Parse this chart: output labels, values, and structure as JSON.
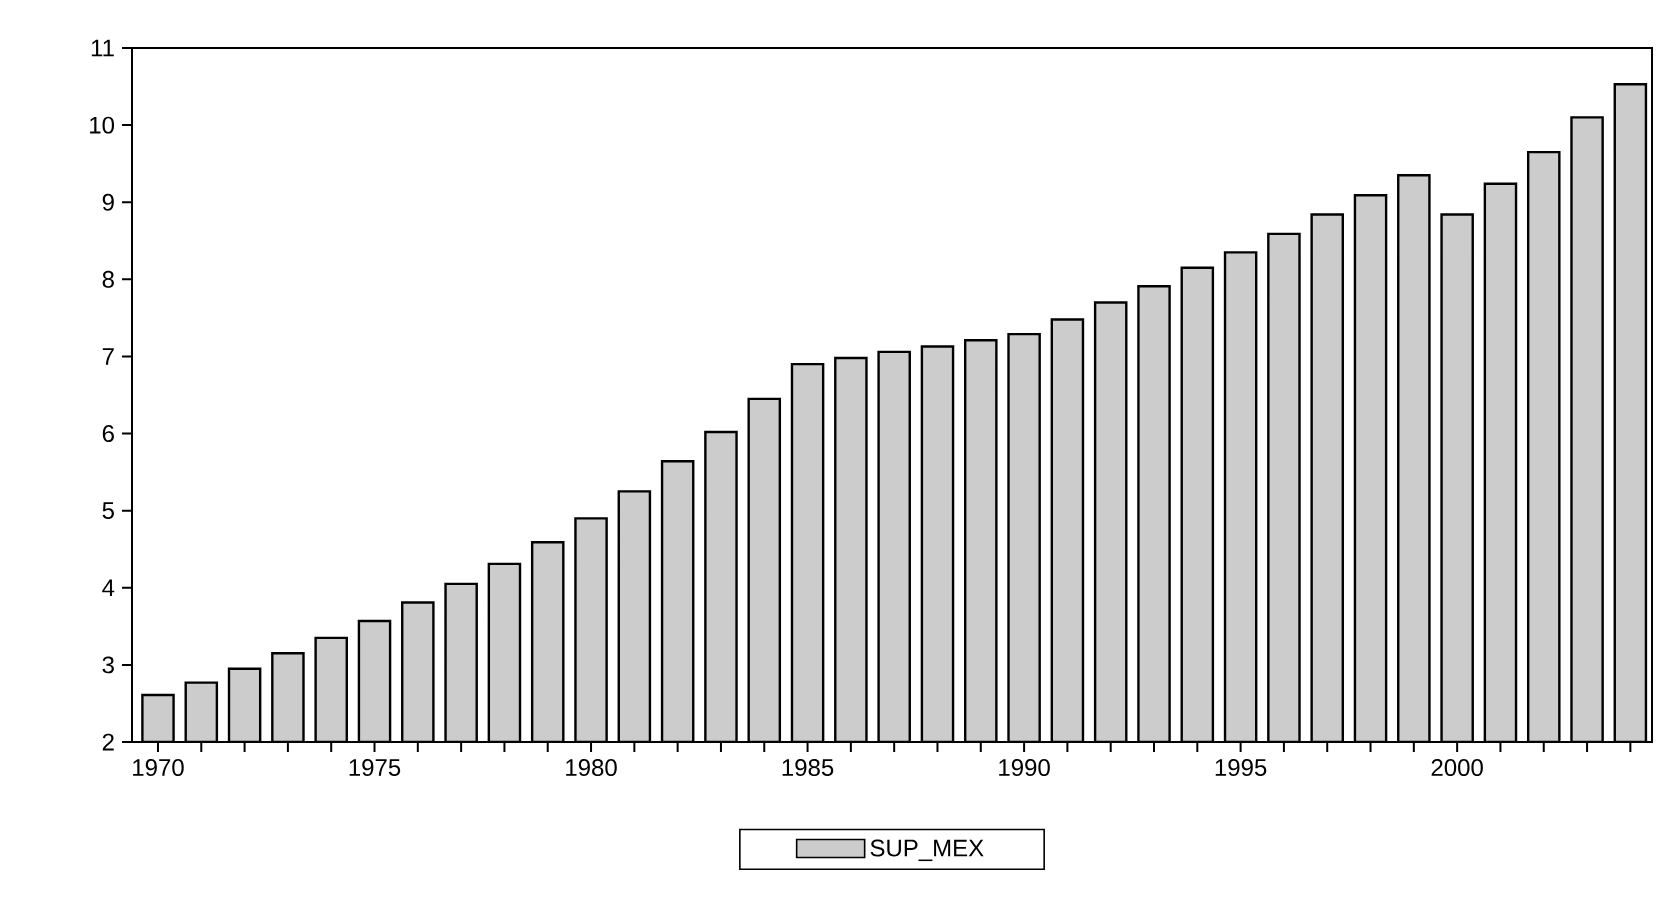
{
  "chart_data": {
    "type": "bar",
    "x": [
      1970,
      1971,
      1972,
      1973,
      1974,
      1975,
      1976,
      1977,
      1978,
      1979,
      1980,
      1981,
      1982,
      1983,
      1984,
      1985,
      1986,
      1987,
      1988,
      1989,
      1990,
      1991,
      1992,
      1993,
      1994,
      1995,
      1996,
      1997,
      1998,
      1999,
      2000,
      2001,
      2002,
      2003,
      2004
    ],
    "series": [
      {
        "name": "SUP_MEX",
        "color": "#cccccc",
        "values": [
          2.61,
          2.77,
          2.95,
          3.15,
          3.35,
          3.57,
          3.81,
          4.05,
          4.31,
          4.59,
          4.9,
          5.25,
          5.64,
          6.02,
          6.45,
          6.9,
          6.98,
          7.06,
          7.13,
          7.21,
          7.29,
          7.48,
          7.7,
          7.91,
          8.15,
          8.35,
          8.59,
          8.84,
          9.09,
          9.35,
          8.84,
          9.24,
          9.65,
          10.1,
          10.53
        ]
      }
    ],
    "xlim": [
      1969.4,
      2004.5
    ],
    "xticks": [
      1970,
      {
        "value": 1971,
        "label": null
      },
      {
        "value": 1972,
        "label": null
      },
      {
        "value": 1973,
        "label": null
      },
      {
        "value": 1974,
        "label": null
      },
      1975,
      {
        "value": 1976,
        "label": null
      },
      {
        "value": 1977,
        "label": null
      },
      {
        "value": 1978,
        "label": null
      },
      {
        "value": 1979,
        "label": null
      },
      1980,
      {
        "value": 1981,
        "label": null
      },
      {
        "value": 1982,
        "label": null
      },
      {
        "value": 1983,
        "label": null
      },
      {
        "value": 1984,
        "label": null
      },
      1985,
      {
        "value": 1986,
        "label": null
      },
      {
        "value": 1987,
        "label": null
      },
      {
        "value": 1988,
        "label": null
      },
      {
        "value": 1989,
        "label": null
      },
      1990,
      {
        "value": 1991,
        "label": null
      },
      {
        "value": 1992,
        "label": null
      },
      {
        "value": 1993,
        "label": null
      },
      {
        "value": 1994,
        "label": null
      },
      1995,
      {
        "value": 1996,
        "label": null
      },
      {
        "value": 1997,
        "label": null
      },
      {
        "value": 1998,
        "label": null
      },
      {
        "value": 1999,
        "label": null
      },
      2000,
      {
        "value": 2001,
        "label": null
      },
      {
        "value": 2002,
        "label": null
      },
      {
        "value": 2003,
        "label": null
      },
      {
        "value": 2004,
        "label": null
      }
    ],
    "ylim": [
      2,
      11
    ],
    "yticks": [
      2,
      3,
      4,
      5,
      6,
      7,
      8,
      9,
      10,
      11
    ],
    "grid": false,
    "legend": "bottom"
  }
}
